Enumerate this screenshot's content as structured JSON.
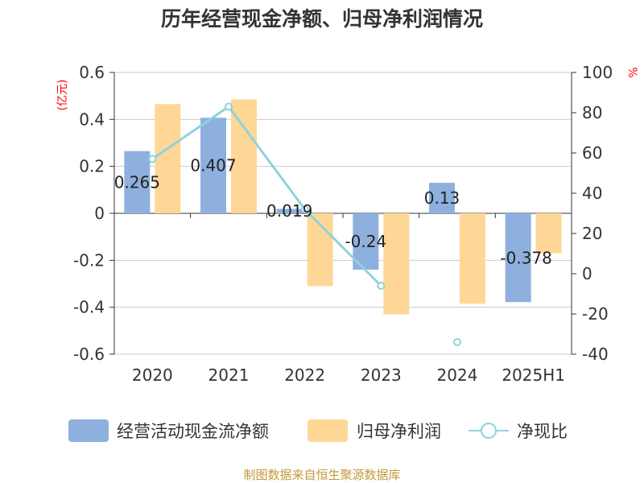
{
  "chart_data": {
    "type": "bar",
    "title": "历年经营现金净额、归母净利润情况",
    "categories": [
      "2020",
      "2021",
      "2022",
      "2023",
      "2024",
      "2025H1"
    ],
    "y_left": {
      "unit_label": "(亿元)",
      "ylim": [
        -0.6,
        0.6
      ],
      "ticks": [
        "0.6",
        "0.4",
        "0.2",
        "0",
        "-0.2",
        "-0.4",
        "-0.6"
      ]
    },
    "y_right": {
      "unit_label": "%",
      "ylim": [
        -40,
        100
      ],
      "ticks": [
        "100",
        "80",
        "60",
        "40",
        "20",
        "0",
        "-20",
        "-40"
      ]
    },
    "series": [
      {
        "name": "经营活动现金流净额",
        "type": "bar",
        "axis": "left",
        "color": "#8eb0de",
        "values": [
          0.265,
          0.407,
          0.019,
          -0.24,
          0.13,
          -0.378
        ],
        "labels": [
          "0.265",
          "0.407",
          "0.019",
          "-0.24",
          "0.13",
          "-0.378"
        ]
      },
      {
        "name": "归母净利润",
        "type": "bar",
        "axis": "left",
        "color": "#fed797",
        "values": [
          0.465,
          0.485,
          -0.31,
          -0.43,
          -0.385,
          -0.17
        ]
      },
      {
        "name": "净现比",
        "type": "line",
        "axis": "right",
        "color": "#8dd3dc",
        "values": [
          57,
          83,
          32,
          -6,
          -34,
          null
        ]
      }
    ],
    "grid": true,
    "legend_position": "bottom"
  },
  "footer": "制图数据来自恒生聚源数据库"
}
